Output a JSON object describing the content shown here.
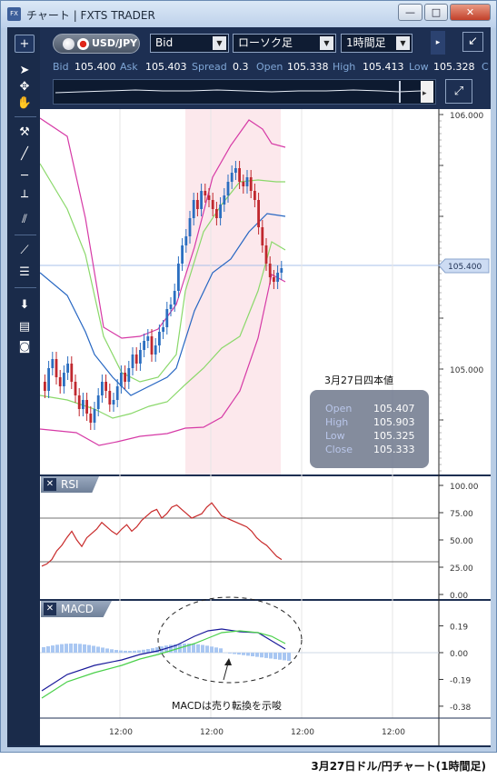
{
  "window": {
    "app_icon_label": "FX",
    "title": "チャート | FXTS TRADER",
    "minimize": "—",
    "maximize": "□",
    "close": "✕"
  },
  "toolbar": {
    "add_label": "+",
    "symbol": "USD/JPY",
    "price_type": "Bid",
    "chart_type": "ローソク足",
    "timeframe": "1時間足",
    "collapse_icon": "↙"
  },
  "quote": {
    "bid_label": "Bid",
    "bid": "105.400",
    "ask_label": "Ask",
    "ask": "105.403",
    "spread_label": "Spread",
    "spread": "0.3",
    "open_label": "Open",
    "open": "105.338",
    "high_label": "High",
    "high": "105.413",
    "low_label": "Low",
    "low": "105.328",
    "extra_label": "C"
  },
  "price_axis": {
    "labels": [
      "106.000",
      "105.000"
    ],
    "current_price": "105.400"
  },
  "ohlc_box": {
    "title": "3月27日四本値",
    "open_label": "Open",
    "open": "105.407",
    "high_label": "High",
    "high": "105.903",
    "low_label": "Low",
    "low": "105.325",
    "close_label": "Close",
    "close": "105.333"
  },
  "rsi": {
    "label": "RSI",
    "ticks": [
      "100.00",
      "75.00",
      "50.00",
      "25.00",
      "0.00"
    ]
  },
  "macd": {
    "label": "MACD",
    "ticks": [
      "0.19",
      "0.00",
      "-0.19",
      "-0.38"
    ],
    "annotation": "MACDは売り転換を示唆"
  },
  "time_axis": {
    "labels": [
      "12:00",
      "12:00",
      "12:00",
      "12:00"
    ]
  },
  "caption": "3月27日ドル/円チャート(1時間足)",
  "colors": {
    "candle_up": "#2a6ec0",
    "candle_down": "#c0282e",
    "bollinger_outer": "#d63aa6",
    "bollinger_inner": "#8ad86a",
    "mid_line": "#2666c2",
    "rsi_line": "#c82a2a",
    "macd_line": "#1a1a9a",
    "signal_line": "#4ad04a",
    "histogram": "#a9c7f2",
    "highlight": "#fce8ec"
  }
}
